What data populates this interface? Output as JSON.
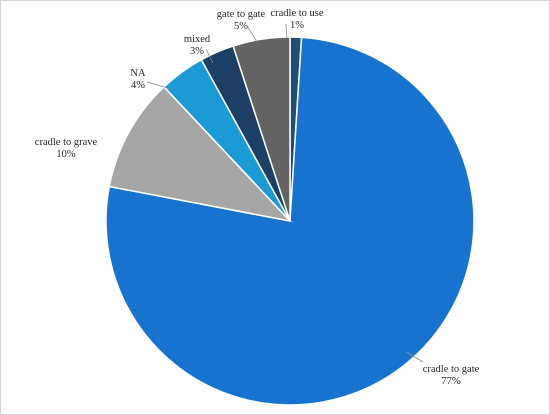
{
  "chart_data": {
    "type": "pie",
    "title": "",
    "slices": [
      {
        "label": "cradle to use",
        "value": 1,
        "pct_label": "1%",
        "color": "#1f4e79"
      },
      {
        "label": "cradle to gate",
        "value": 77,
        "pct_label": "77%",
        "color": "#1872cf"
      },
      {
        "label": "cradle to grave",
        "value": 10,
        "pct_label": "10%",
        "color": "#a6a6a6"
      },
      {
        "label": "NA",
        "value": 4,
        "pct_label": "4%",
        "color": "#1b9ad6"
      },
      {
        "label": "mixed",
        "value": 3,
        "pct_label": "3%",
        "color": "#1c3f66"
      },
      {
        "label": "gate to gate",
        "value": 5,
        "pct_label": "5%",
        "color": "#636363"
      }
    ],
    "legend": "none"
  }
}
